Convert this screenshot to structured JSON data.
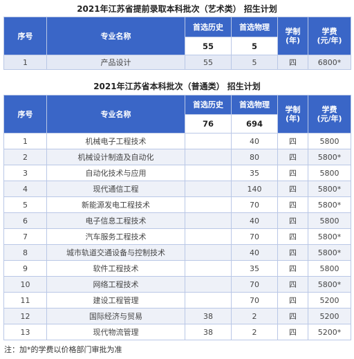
{
  "art": {
    "title": "2021年江苏省提前录取本科批次（艺术类） 招生计划",
    "headers": {
      "seq": "序号",
      "major": "专业名称",
      "history": "首选历史",
      "physics": "首选物理",
      "years_line1": "学制",
      "years_line2": "(年)",
      "fee_line1": "学费",
      "fee_line2": "(元/年)"
    },
    "totals": {
      "history": "55",
      "physics": "5"
    },
    "rows": [
      {
        "seq": "1",
        "major": "产品设计",
        "history": "55",
        "physics": "5",
        "years": "四",
        "fee": "6800*"
      }
    ]
  },
  "general": {
    "title": "2021年江苏省本科批次（普通类） 招生计划",
    "headers": {
      "seq": "序号",
      "major": "专业名称",
      "history": "首选历史",
      "physics": "首选物理",
      "years_line1": "学制",
      "years_line2": "(年)",
      "fee_line1": "学费",
      "fee_line2": "(元/年)"
    },
    "totals": {
      "history": "76",
      "physics": "694"
    },
    "rows": [
      {
        "seq": "1",
        "major": "机械电子工程技术",
        "history": "",
        "physics": "40",
        "years": "四",
        "fee": "5800"
      },
      {
        "seq": "2",
        "major": "机械设计制造及自动化",
        "history": "",
        "physics": "80",
        "years": "四",
        "fee": "5800*"
      },
      {
        "seq": "3",
        "major": "自动化技术与应用",
        "history": "",
        "physics": "35",
        "years": "四",
        "fee": "5800"
      },
      {
        "seq": "4",
        "major": "现代通信工程",
        "history": "",
        "physics": "140",
        "years": "四",
        "fee": "5800*"
      },
      {
        "seq": "5",
        "major": "新能源发电工程技术",
        "history": "",
        "physics": "70",
        "years": "四",
        "fee": "5800*"
      },
      {
        "seq": "6",
        "major": "电子信息工程技术",
        "history": "",
        "physics": "40",
        "years": "四",
        "fee": "5800"
      },
      {
        "seq": "7",
        "major": "汽车服务工程技术",
        "history": "",
        "physics": "70",
        "years": "四",
        "fee": "5800*"
      },
      {
        "seq": "8",
        "major": "城市轨道交通设备与控制技术",
        "history": "",
        "physics": "40",
        "years": "四",
        "fee": "5800*"
      },
      {
        "seq": "9",
        "major": "软件工程技术",
        "history": "",
        "physics": "35",
        "years": "四",
        "fee": "5800"
      },
      {
        "seq": "10",
        "major": "网络工程技术",
        "history": "",
        "physics": "70",
        "years": "四",
        "fee": "5800*"
      },
      {
        "seq": "11",
        "major": "建设工程管理",
        "history": "",
        "physics": "70",
        "years": "四",
        "fee": "5200"
      },
      {
        "seq": "12",
        "major": "国际经济与贸易",
        "history": "38",
        "physics": "2",
        "years": "四",
        "fee": "5200"
      },
      {
        "seq": "13",
        "major": "现代物流管理",
        "history": "38",
        "physics": "2",
        "years": "四",
        "fee": "5200*"
      }
    ]
  },
  "note": "注：加*的学费以价格部门审批为准"
}
